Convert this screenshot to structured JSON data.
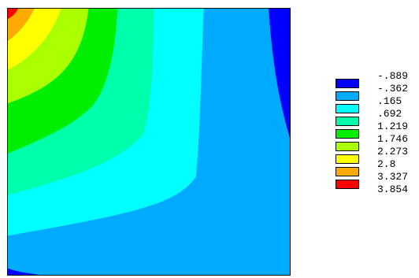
{
  "chart_data": {
    "type": "heatmap",
    "title": "",
    "xlabel": "",
    "ylabel": "",
    "legend_placement": "right",
    "levels": [
      {
        "label": "-.889",
        "value": -0.889,
        "color": "#0000ff"
      },
      {
        "label": "-.362",
        "value": -0.362,
        "color": "#00aaff"
      },
      {
        "label": ".165",
        "value": 0.165,
        "color": "#00ffff"
      },
      {
        "label": ".692",
        "value": 0.692,
        "color": "#00ffaa"
      },
      {
        "label": "1.219",
        "value": 1.219,
        "color": "#00ee00"
      },
      {
        "label": "1.746",
        "value": 1.746,
        "color": "#aaff00"
      },
      {
        "label": "2.273",
        "value": 2.273,
        "color": "#ffff00"
      },
      {
        "label": "2.8",
        "value": 2.8,
        "color": "#ffaa00"
      },
      {
        "label": "3.327",
        "value": 3.327,
        "color": "#ff0000"
      },
      {
        "label": "3.854",
        "value": 3.854,
        "color": ""
      }
    ]
  }
}
